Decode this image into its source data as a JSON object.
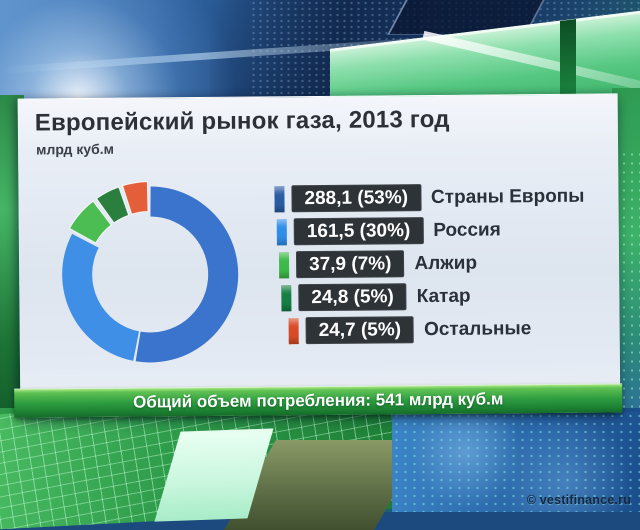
{
  "window": {
    "watermark": "© vestifinance.ru"
  },
  "panel": {
    "title": "Европейский рынок газа, 2013 год",
    "subtitle": "млрд куб.м",
    "footer": "Общий объем потребления: 541 млрд куб.м"
  },
  "chart_data": {
    "type": "pie",
    "subtype": "donut",
    "title": "Европейский рынок газа, 2013 год",
    "unit": "млрд куб.м",
    "total": {
      "label": "Общий объем потребления",
      "value": 541,
      "unit": "млрд куб.м"
    },
    "start_angle_deg": 0,
    "direction": "clockwise",
    "legend_position": "right",
    "slices": [
      {
        "label": "Страны Европы",
        "value": 288.1,
        "percent": 53,
        "display": "288,1 (53%)",
        "color": "#3a74cc",
        "marker_color": "#2a5ca4"
      },
      {
        "label": "Россия",
        "value": 161.5,
        "percent": 30,
        "display": "161,5 (30%)",
        "color": "#3f8fe6",
        "marker_color": "#2f8ee9"
      },
      {
        "label": "Алжир",
        "value": 37.9,
        "percent": 7,
        "display": "37,9 (7%)",
        "color": "#4cbd53",
        "marker_color": "#3eba49"
      },
      {
        "label": "Катар",
        "value": 24.8,
        "percent": 5,
        "display": "24,8 (5%)",
        "color": "#2a7e3e",
        "marker_color": "#167f43"
      },
      {
        "label": "Остальные",
        "value": 24.7,
        "percent": 5,
        "display": "24,7 (5%)",
        "color": "#e45e39",
        "marker_color": "#da4a28"
      }
    ]
  },
  "colors": {
    "footer_bar_green": "#27953d",
    "legend_box_bg": "#2e3338",
    "panel_text": "#2c3138"
  }
}
